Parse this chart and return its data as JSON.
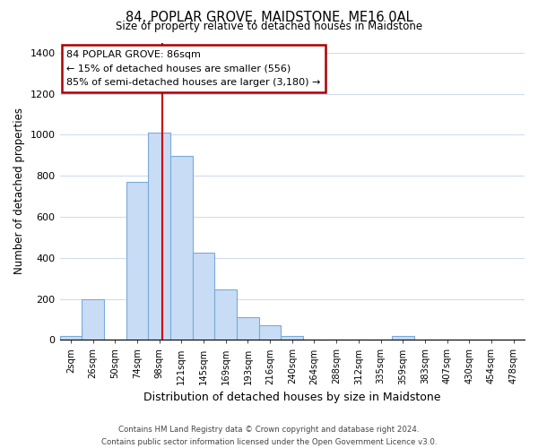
{
  "title": "84, POPLAR GROVE, MAIDSTONE, ME16 0AL",
  "subtitle": "Size of property relative to detached houses in Maidstone",
  "xlabel": "Distribution of detached houses by size in Maidstone",
  "ylabel": "Number of detached properties",
  "bar_color": "#c8dcf5",
  "bar_edge_color": "#7aaad8",
  "categories": [
    "2sqm",
    "26sqm",
    "50sqm",
    "74sqm",
    "98sqm",
    "121sqm",
    "145sqm",
    "169sqm",
    "193sqm",
    "216sqm",
    "240sqm",
    "264sqm",
    "288sqm",
    "312sqm",
    "335sqm",
    "359sqm",
    "383sqm",
    "407sqm",
    "430sqm",
    "454sqm",
    "478sqm"
  ],
  "values": [
    20,
    200,
    0,
    770,
    1010,
    895,
    425,
    245,
    110,
    70,
    20,
    0,
    0,
    0,
    0,
    20,
    0,
    0,
    0,
    0,
    0
  ],
  "ylim": [
    0,
    1450
  ],
  "yticks": [
    0,
    200,
    400,
    600,
    800,
    1000,
    1200,
    1400
  ],
  "property_line_x": 4.15,
  "property_line_color": "#cc0000",
  "annotation_title": "84 POPLAR GROVE: 86sqm",
  "annotation_line1": "← 15% of detached houses are smaller (556)",
  "annotation_line2": "85% of semi-detached houses are larger (3,180) →",
  "annotation_box_color": "#ffffff",
  "annotation_box_edge": "#aa0000",
  "footer_line1": "Contains HM Land Registry data © Crown copyright and database right 2024.",
  "footer_line2": "Contains public sector information licensed under the Open Government Licence v3.0.",
  "background_color": "#ffffff",
  "grid_color": "#d0dcee"
}
